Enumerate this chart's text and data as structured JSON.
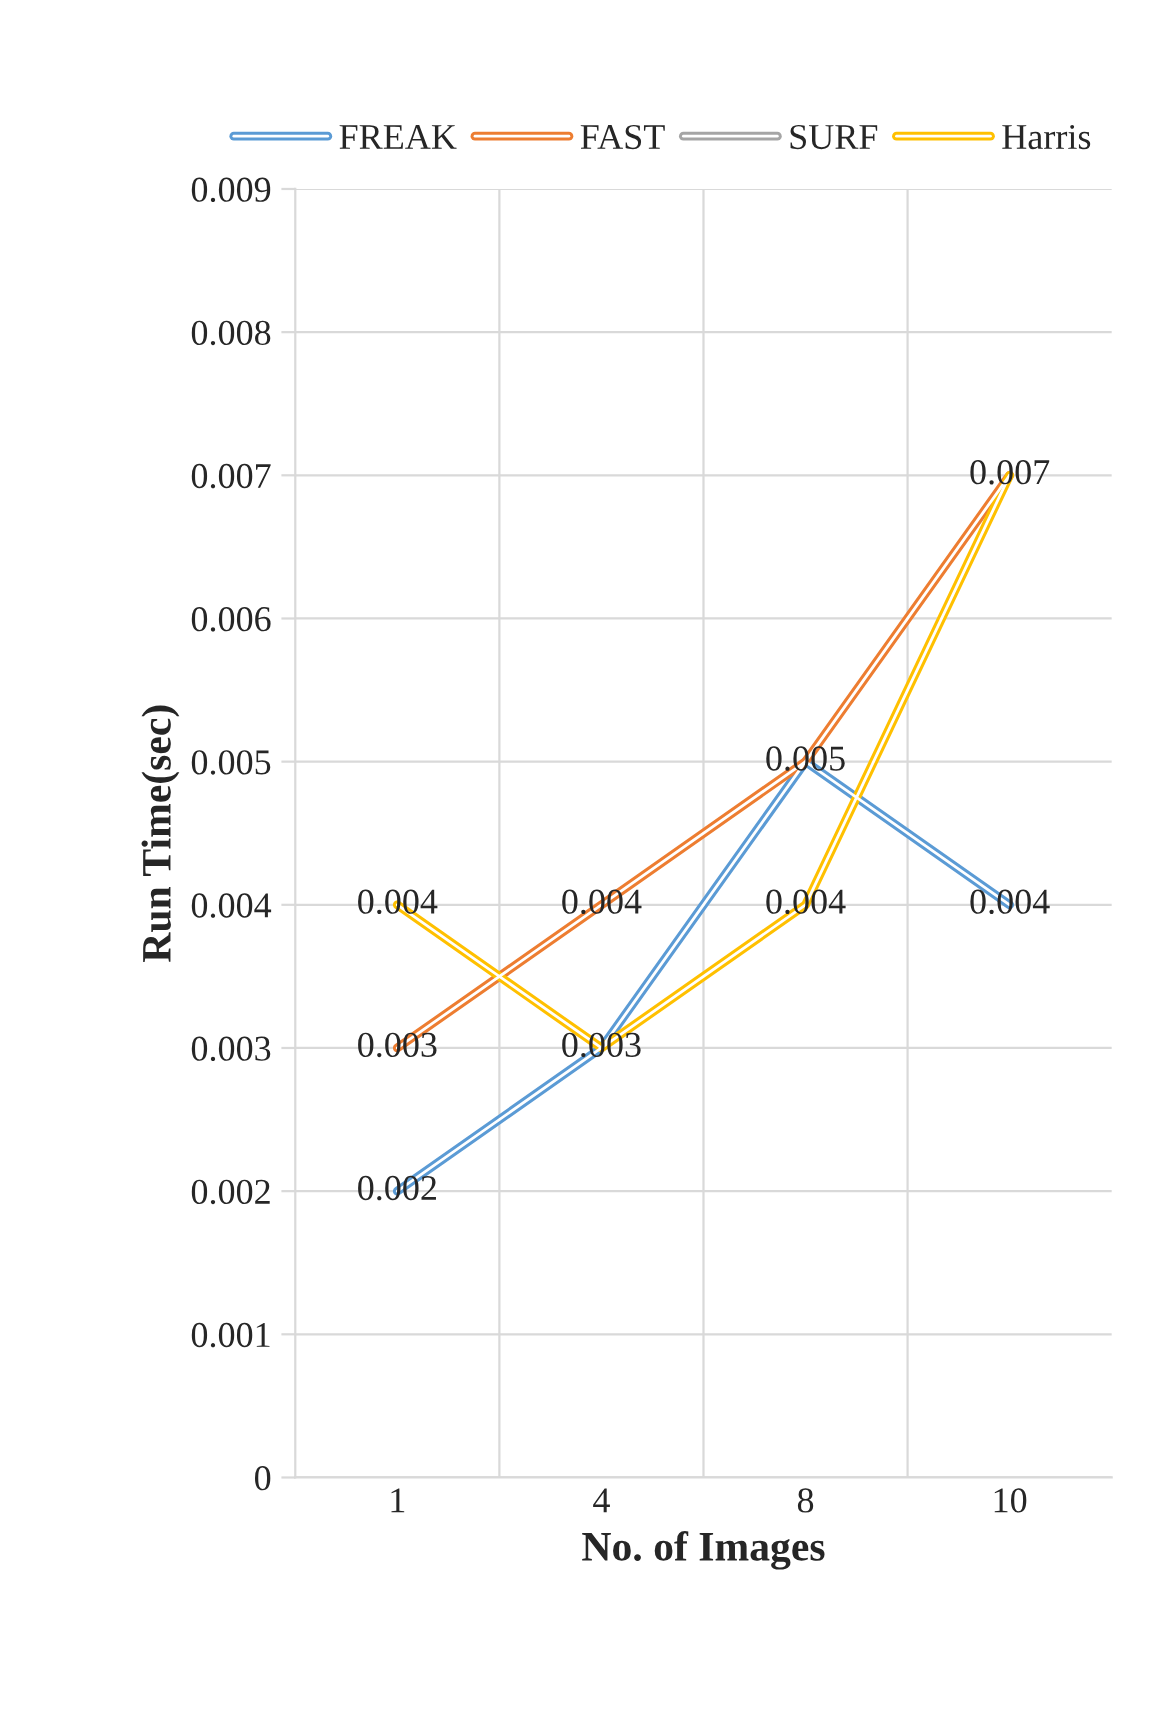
{
  "chart_data": {
    "type": "line",
    "xlabel": "No. of Images",
    "ylabel": "Run Time(sec)",
    "categories": [
      "1",
      "4",
      "8",
      "10"
    ],
    "series": [
      {
        "name": "FREAK",
        "color": "#5b9bd5",
        "values": [
          0.002,
          0.003,
          0.005,
          0.004
        ]
      },
      {
        "name": "FAST",
        "color": "#ed7d31",
        "values": [
          0.003,
          0.004,
          0.005,
          0.007
        ],
        "value_labels": [
          "0.003",
          "0.004",
          null,
          "0.007"
        ]
      },
      {
        "name": "SURF",
        "color": "#a5a5a5",
        "values": [
          null,
          null,
          null,
          null
        ]
      },
      {
        "name": "Harris",
        "color": "#ffc000",
        "values": [
          0.004,
          0.003,
          0.004,
          0.007
        ],
        "value_labels": [
          "0.004",
          null,
          "0.004",
          null
        ]
      }
    ],
    "ylim": [
      0,
      0.009
    ],
    "yticks": [
      0,
      0.001,
      0.002,
      0.003,
      0.004,
      0.005,
      0.006,
      0.007,
      0.008,
      0.009
    ],
    "grid": true,
    "legend": "top",
    "data_labels": true,
    "marker": "none",
    "line_style": "solid"
  }
}
